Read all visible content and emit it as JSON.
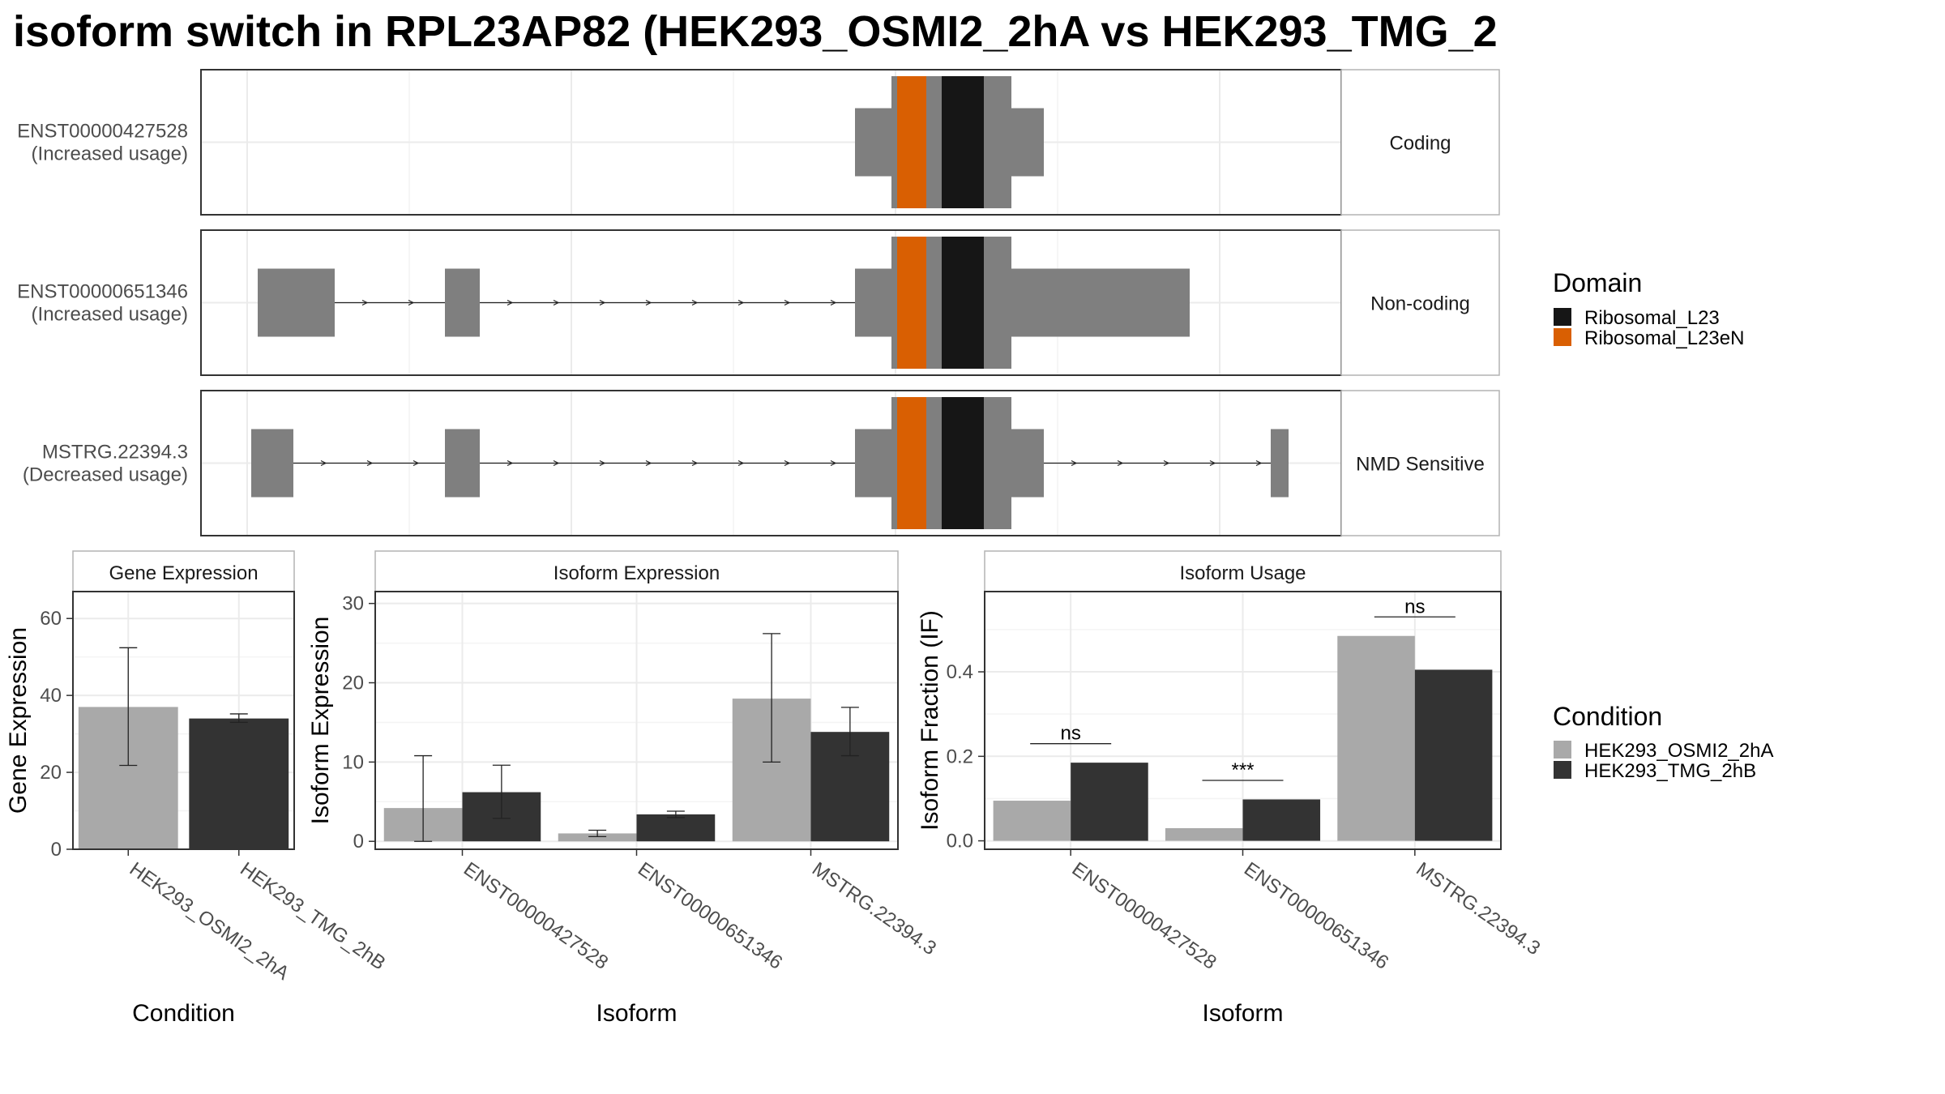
{
  "title": "isoform switch in RPL23AP82 (HEK293_OSMI2_2hA vs HEK293_TMG_2",
  "structure": {
    "tracks": [
      {
        "label": "ENST00000427528",
        "usage": "(Increased usage)",
        "strip": "Coding",
        "exons": [
          [
            0,
            1
          ],
          [
            2,
            4
          ]
        ],
        "thin_exon": [
          1,
          2
        ],
        "introns": []
      },
      {
        "label": "ENST00000651346",
        "usage": "(Increased usage)",
        "strip": "Non-coding",
        "exons": [
          [
            -2.7,
            -1.3
          ],
          [
            -1.3,
            -0.35
          ],
          [
            2,
            3.6
          ]
        ],
        "thin_exon": [
          -1,
          2
        ],
        "introns": [
          [
            -1.3,
            -0.35
          ],
          [
            -0.35,
            -0.3
          ]
        ]
      },
      {
        "label": "MSTRG.22394.3",
        "usage": "(Decreased usage)",
        "strip": "NMD Sensitive",
        "exons": [],
        "thin_exon": [],
        "introns": []
      }
    ],
    "legend_title": "Domain",
    "legend": [
      {
        "name": "Ribosomal_L23",
        "color": "#161616"
      },
      {
        "name": "Ribosomal_L23eN",
        "color": "#d95f02"
      }
    ],
    "colors": {
      "exon": "#7f7f7f",
      "panel_border": "#333333",
      "grid": "#ebebeb",
      "strip_border": "#b3b3b3"
    }
  },
  "chart_data": [
    {
      "type": "bar",
      "strip": "Gene Expression",
      "categories": [
        "HEK293_OSMI2_2hA",
        "HEK293_TMG_2hB"
      ],
      "values": [
        37.0,
        34.0
      ],
      "error_low": [
        21.8,
        33.0
      ],
      "error_high": [
        52.4,
        35.2
      ],
      "xlabel": "Condition",
      "ylabel": "Gene Expression",
      "ylim": [
        0,
        67
      ],
      "yticks": [
        0,
        20,
        40,
        60
      ]
    },
    {
      "type": "bar",
      "strip": "Isoform Expression",
      "categories": [
        "ENST00000427528",
        "ENST00000651346",
        "MSTRG.22394.3"
      ],
      "series": [
        {
          "condition": "HEK293_OSMI2_2hA",
          "values": [
            4.2,
            1.0,
            18.0
          ],
          "error_low": [
            0,
            0.6,
            10.0
          ],
          "error_high": [
            10.8,
            1.4,
            26.2
          ]
        },
        {
          "condition": "HEK293_TMG_2hB",
          "values": [
            6.2,
            3.4,
            13.8
          ],
          "error_low": [
            2.9,
            3.0,
            10.8
          ],
          "error_high": [
            9.6,
            3.8,
            16.9
          ]
        }
      ],
      "xlabel": "Isoform",
      "ylabel": "Isoform Expression",
      "ylim": [
        -1,
        31.5
      ],
      "yticks": [
        0,
        10,
        20,
        30
      ]
    },
    {
      "type": "bar",
      "strip": "Isoform Usage",
      "categories": [
        "ENST00000427528",
        "ENST00000651346",
        "MSTRG.22394.3"
      ],
      "series": [
        {
          "condition": "HEK293_OSMI2_2hA",
          "values": [
            0.095,
            0.03,
            0.485
          ]
        },
        {
          "condition": "HEK293_TMG_2hB",
          "values": [
            0.185,
            0.098,
            0.405
          ]
        }
      ],
      "significance": [
        "ns",
        "***",
        "ns"
      ],
      "xlabel": "Isoform",
      "ylabel": "Isoform Fraction (IF)",
      "ylim": [
        -0.02,
        0.59
      ],
      "yticks": [
        0.0,
        0.2,
        0.4
      ],
      "ytick_labels": [
        "0.0",
        "0.2",
        "0.4"
      ]
    }
  ],
  "condition_legend": {
    "title": "Condition",
    "items": [
      {
        "name": "HEK293_OSMI2_2hA",
        "color": "#a9a9a9"
      },
      {
        "name": "HEK293_TMG_2hB",
        "color": "#333333"
      }
    ]
  }
}
